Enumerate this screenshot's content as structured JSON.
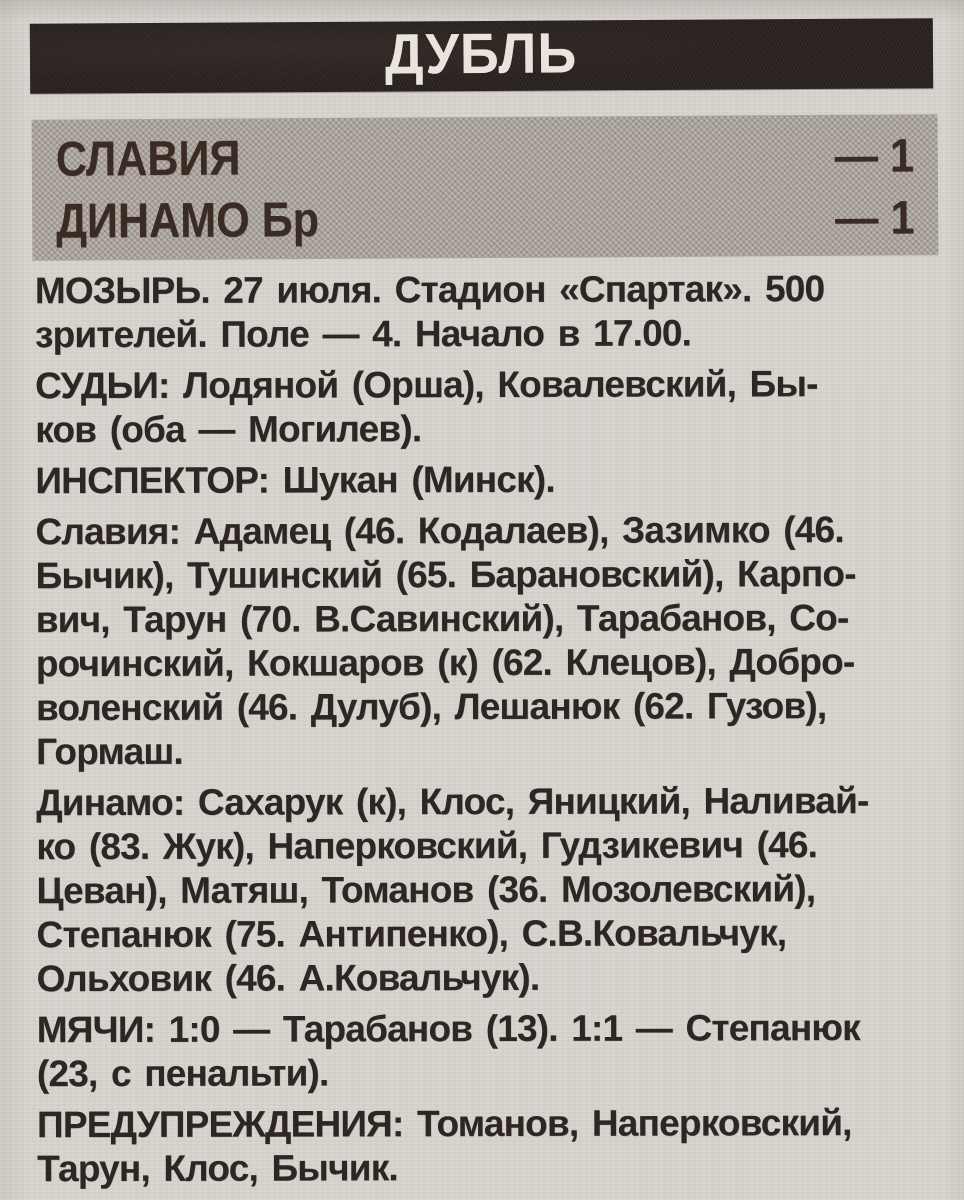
{
  "header": {
    "title": "ДУБЛЬ"
  },
  "scoreboard": {
    "rows": [
      {
        "team": "СЛАВИЯ",
        "score": "— 1"
      },
      {
        "team": "ДИНАМО Бр",
        "score": "— 1"
      }
    ]
  },
  "report": {
    "paragraphs": {
      "venue": {
        "lines": [
          "МОЗЫРЬ. 27 июля. Стадион «Спартак». 500",
          "зрителей. Поле — 4. Начало в 17.00."
        ]
      },
      "referees": {
        "lines": [
          "СУДЬИ: Лодяной (Орша), Ковалевский, Бы-",
          "ков (оба — Могилев)."
        ]
      },
      "inspector": {
        "lines": [
          "ИНСПЕКТОР: Шукан (Минск)."
        ]
      },
      "slavia_lineup": {
        "lines": [
          "Славия: Адамец (46. Кодалаев), Зазимко (46.",
          "Бычик), Тушинский (65. Барановский), Карпо-",
          "вич, Тарун (70. В.Савинский), Тарабанов, Со-",
          "рочинский, Кокшаров (к) (62. Клецов), Добро-",
          "воленский (46. Дулуб), Лешанюк (62. Гузов),",
          "Гормаш."
        ]
      },
      "dinamo_lineup": {
        "lines": [
          "Динамо: Сахарук (к), Клос, Яницкий, Наливай-",
          "ко (83. Жук), Наперковский, Гудзикевич (46.",
          "Цеван), Матяш, Томанов (36. Мозолевский),",
          "Степанюк (75. Антипенко), С.В.Ковальчук,",
          "Ольховик (46. А.Ковальчук)."
        ]
      },
      "goals": {
        "lines": [
          "МЯЧИ: 1:0 — Тарабанов (13). 1:1 — Степанюк",
          "(23, с пенальти)."
        ]
      },
      "warnings": {
        "lines": [
          "ПРЕДУПРЕЖДЕНИЯ: Томанов, Наперковский,",
          "Тарун, Клос, Бычик."
        ]
      }
    }
  },
  "colors": {
    "paper": "#d7d4ce",
    "bar": "#2b2321",
    "bar_text": "#e9e5dd",
    "panel": "#b3aea6",
    "panel_text": "#3a2c24",
    "ink": "#2e2622"
  }
}
